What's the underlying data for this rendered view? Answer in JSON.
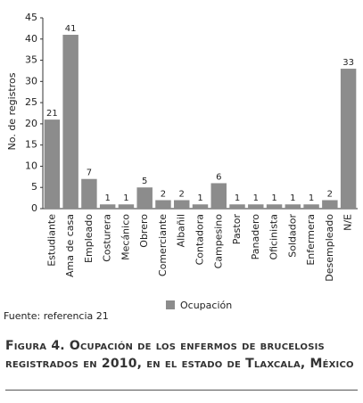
{
  "chart_data": {
    "type": "bar",
    "categories": [
      "Estudiante",
      "Ama de casa",
      "Empleado",
      "Costurera",
      "Mecánico",
      "Obrero",
      "Comerciante",
      "Albañil",
      "Contadora",
      "Campesino",
      "Pastor",
      "Panadero",
      "Oficinista",
      "Soldador",
      "Enfermera",
      "Desempleado",
      "N/E"
    ],
    "series": [
      {
        "name": "Ocupación",
        "color": "#8c8c8c",
        "values": [
          21,
          41,
          7,
          1,
          1,
          5,
          2,
          2,
          1,
          6,
          1,
          1,
          1,
          1,
          1,
          2,
          33
        ]
      }
    ],
    "ylabel": "No. de registros",
    "ylim": [
      0,
      45
    ],
    "yticks": [
      0,
      5,
      10,
      15,
      20,
      25,
      30,
      35,
      40,
      45
    ],
    "source": "Fuente: referencia 21",
    "caption": "Figura 4. Ocupación de los enfermos de brucelosis registrados en 2010, en el estado de Tlaxcala, México"
  }
}
